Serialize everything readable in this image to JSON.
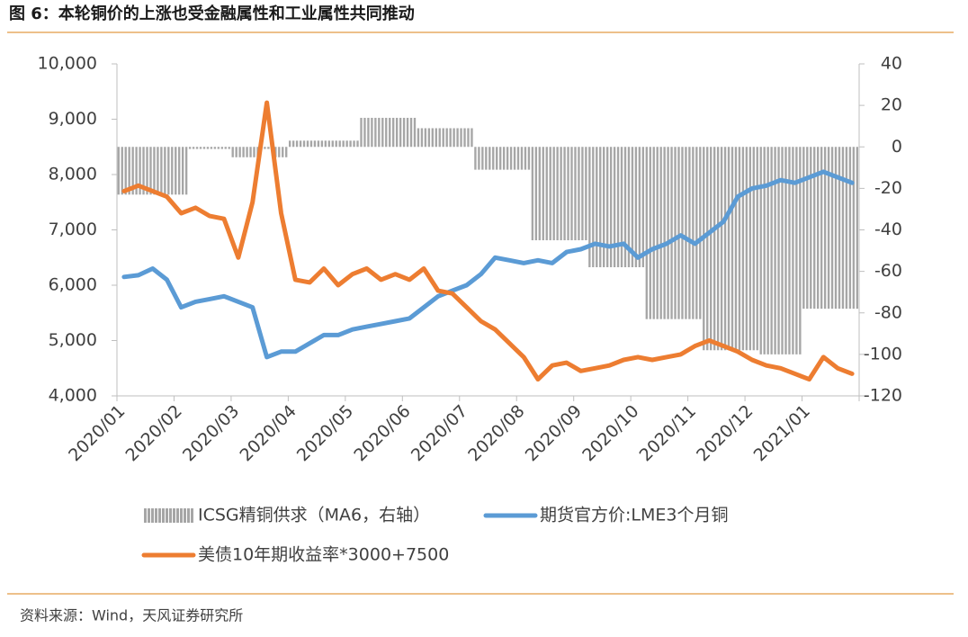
{
  "chart_data": {
    "type": "combo",
    "title": "图 6：本轮铜价的上涨也受金融属性和工业属性共同推动",
    "source": "资料来源：Wind，天风证券研究所",
    "categories": [
      "2020/01",
      null,
      null,
      null,
      "2020/02",
      null,
      null,
      null,
      "2020/03",
      null,
      null,
      null,
      "2020/04",
      null,
      null,
      null,
      "2020/05",
      null,
      null,
      null,
      "2020/06",
      null,
      null,
      null,
      "2020/07",
      null,
      null,
      null,
      "2020/08",
      null,
      null,
      null,
      "2020/09",
      null,
      null,
      null,
      "2020/10",
      null,
      null,
      null,
      "2020/11",
      null,
      null,
      null,
      "2020/12",
      null,
      null,
      null,
      "2021/01",
      null,
      null,
      null
    ],
    "ylim": [
      4000,
      10000
    ],
    "yticks": [
      {
        "value": 4000,
        "label": "4,000"
      },
      {
        "value": 5000,
        "label": "5,000"
      },
      {
        "value": 6000,
        "label": "6,000"
      },
      {
        "value": 7000,
        "label": "7,000"
      },
      {
        "value": 8000,
        "label": "8,000"
      },
      {
        "value": 9000,
        "label": "9,000"
      },
      {
        "value": 10000,
        "label": "10,000"
      }
    ],
    "y2lim": [
      -120,
      40
    ],
    "y2ticks": [
      -120,
      -100,
      -80,
      -60,
      -40,
      -20,
      0,
      20,
      40
    ],
    "grid": false,
    "series": [
      {
        "name": "ICSG精铜供求（MA6，右轴）",
        "type": "bar",
        "axis": "y2",
        "color": "#a6a6a6",
        "values": [
          -23,
          -23,
          -23,
          -23,
          -23,
          -1,
          -1,
          -1,
          -5,
          -5,
          -1,
          -5,
          3,
          3,
          3,
          3,
          3,
          14,
          14,
          14,
          14,
          9,
          9,
          9,
          9,
          -11,
          -11,
          -11,
          -11,
          -45,
          -45,
          -45,
          -45,
          -58,
          -58,
          -58,
          -58,
          -83,
          -83,
          -83,
          -83,
          -98,
          -98,
          -98,
          -98,
          -100,
          -100,
          -100,
          -78,
          -78,
          -78,
          -78
        ]
      },
      {
        "name": "期货官方价:LME3个月铜",
        "type": "line",
        "color": "#5b9bd5",
        "values": [
          6150,
          6180,
          6300,
          6100,
          5600,
          5700,
          5750,
          5800,
          5700,
          5600,
          4700,
          4800,
          4800,
          4950,
          5100,
          5100,
          5200,
          5250,
          5300,
          5350,
          5400,
          5600,
          5800,
          5900,
          6000,
          6200,
          6500,
          6450,
          6400,
          6450,
          6400,
          6600,
          6650,
          6750,
          6700,
          6750,
          6500,
          6650,
          6750,
          6900,
          6750,
          6950,
          7150,
          7600,
          7750,
          7800,
          7900,
          7850,
          7950,
          8050,
          7950,
          7850
        ]
      },
      {
        "name": "美债10年期收益率*3000+7500",
        "type": "line",
        "color": "#ed7d31",
        "values": [
          7700,
          7800,
          7700,
          7600,
          7300,
          7400,
          7250,
          7200,
          6500,
          7500,
          9300,
          7300,
          6100,
          6050,
          6300,
          6000,
          6200,
          6300,
          6100,
          6200,
          6100,
          6300,
          5900,
          5850,
          5600,
          5350,
          5200,
          4950,
          4700,
          4300,
          4550,
          4600,
          4450,
          4500,
          4550,
          4650,
          4700,
          4650,
          4700,
          4750,
          4900,
          5000,
          4900,
          4800,
          4650,
          4550,
          4500,
          4400,
          4300,
          4700,
          4500,
          4400
        ]
      }
    ]
  }
}
